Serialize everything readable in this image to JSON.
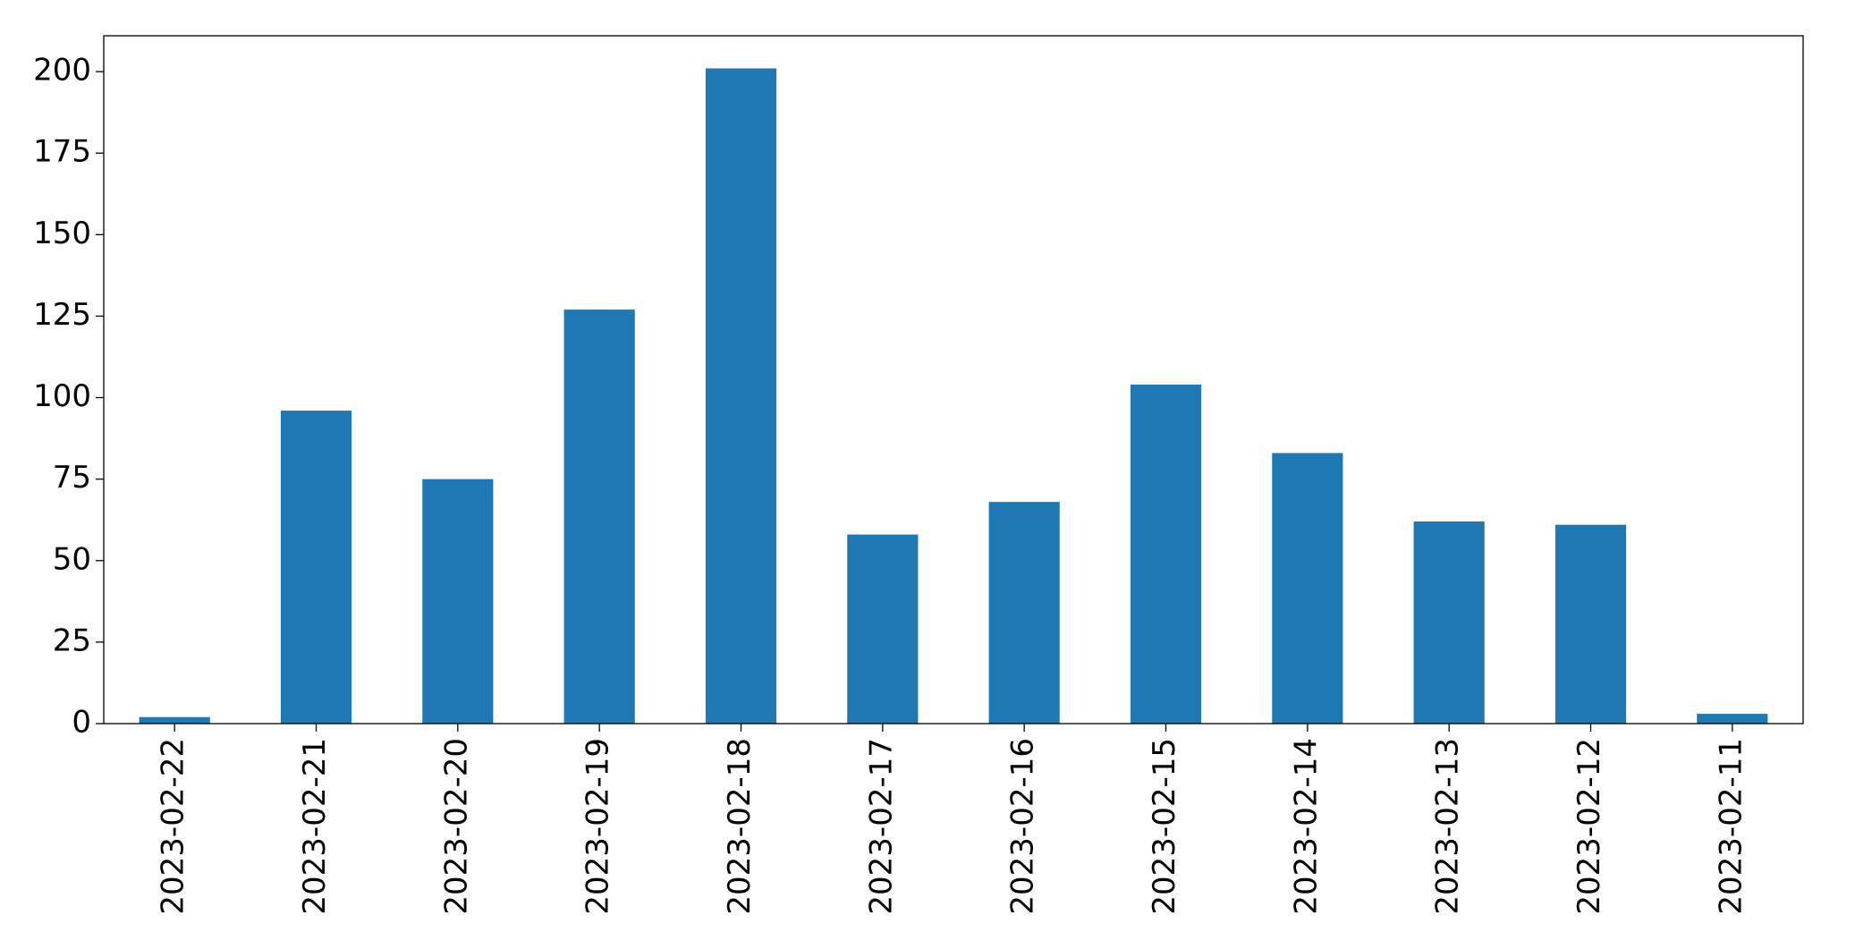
{
  "chart_data": {
    "type": "bar",
    "categories": [
      "2023-02-22",
      "2023-02-21",
      "2023-02-20",
      "2023-02-19",
      "2023-02-18",
      "2023-02-17",
      "2023-02-16",
      "2023-02-15",
      "2023-02-14",
      "2023-02-13",
      "2023-02-12",
      "2023-02-11"
    ],
    "values": [
      2,
      96,
      75,
      127,
      201,
      58,
      68,
      104,
      83,
      62,
      61,
      3
    ],
    "color": "#1f77b4",
    "ylim": [
      0,
      211
    ],
    "yticks": [
      0,
      25,
      50,
      75,
      100,
      125,
      150,
      175,
      200
    ],
    "grid": false
  }
}
